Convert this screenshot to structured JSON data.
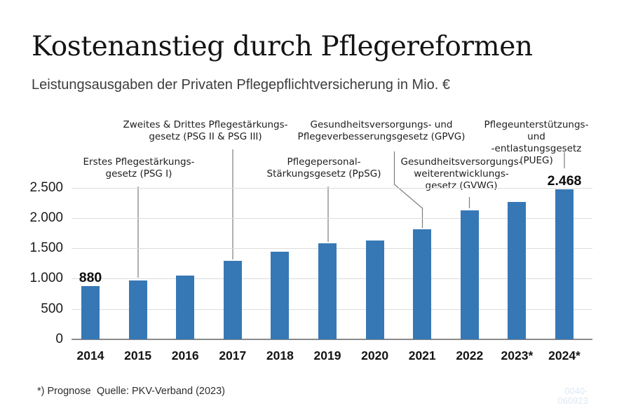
{
  "header": {
    "title": "Kostenanstieg durch Pflegereformen",
    "subtitle": "Leistungsausgaben der Privaten Pflegepflichtversicherung in Mio. €"
  },
  "chart_data": {
    "type": "bar",
    "title": "Kostenanstieg durch Pflegereformen",
    "subtitle": "Leistungsausgaben der Privaten Pflegepflichtversicherung in Mio. €",
    "unit": "Mio. €",
    "categories": [
      "2014",
      "2015",
      "2016",
      "2017",
      "2018",
      "2019",
      "2020",
      "2021",
      "2022",
      "2023*",
      "2024*"
    ],
    "values": [
      880,
      970,
      1050,
      1290,
      1440,
      1580,
      1630,
      1810,
      2130,
      2260,
      2468
    ],
    "bar_labels": [
      "880",
      null,
      null,
      null,
      null,
      null,
      null,
      null,
      null,
      null,
      "2.468"
    ],
    "y_ticks": [
      0,
      500,
      1000,
      1500,
      2000,
      2500
    ],
    "y_tick_labels": [
      "0",
      "500",
      "1.000",
      "1.500",
      "2.000",
      "2.500"
    ],
    "ylim": [
      0,
      2500
    ],
    "grid": true,
    "legend": false,
    "bar_color": "#3678b5",
    "annotations": [
      {
        "id": "psg1",
        "points_to": "2015",
        "text": "Erstes Pflegestärkungs-\ngesetz (PSG I)"
      },
      {
        "id": "psg23",
        "points_to": "2017",
        "text": "Zweites & Drittes Pflegestärkungs-\ngesetz (PSG II & PSG III)"
      },
      {
        "id": "ppsg",
        "points_to": "2019",
        "text": "Pflegepersonal-\nStärkungsgesetz (PpSG)"
      },
      {
        "id": "gpvg",
        "points_to": "2021",
        "text": "Gesundheitsversorgungs- und\nPflegeverbesserungsgesetz (GPVG)"
      },
      {
        "id": "gvwg",
        "points_to": "2022",
        "text": "Gesundheitsversorgungs-\nweiterentwicklungs-\ngesetz (GVWG)"
      },
      {
        "id": "pueg",
        "points_to": "2024*",
        "text": "Pflegeunterstützungs- und\n-entlastungsgesetz (PUEG)"
      }
    ]
  },
  "footer": {
    "footnote": "*) Prognose",
    "source": "Quelle: PKV-Verband (2023)",
    "code": "0040-060923"
  }
}
